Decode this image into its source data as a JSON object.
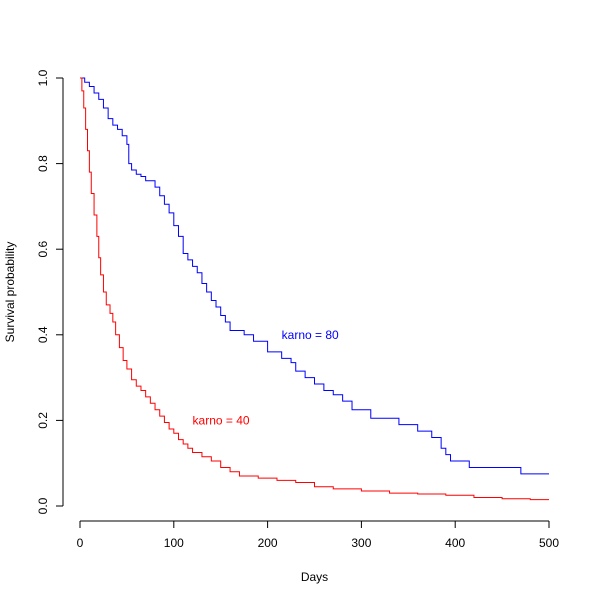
{
  "chart_data": {
    "type": "line",
    "title": "",
    "xlabel": "Days",
    "ylabel": "Survival probability",
    "xlim": [
      0,
      500
    ],
    "ylim": [
      0,
      1
    ],
    "xticks": [
      0,
      100,
      200,
      300,
      400,
      500
    ],
    "yticks": [
      0.0,
      0.2,
      0.4,
      0.6,
      0.8,
      1.0
    ],
    "x_tick_labels": [
      "0",
      "100",
      "200",
      "300",
      "400",
      "500"
    ],
    "y_tick_labels": [
      "0.0",
      "0.2",
      "0.4",
      "0.6",
      "0.8",
      "1.0"
    ],
    "grid": false,
    "step": true,
    "series": [
      {
        "name": "karno = 80",
        "color": "#0000ff",
        "label": {
          "text": "karno = 80",
          "x": 215,
          "y": 0.4
        },
        "points": [
          [
            0,
            1.0
          ],
          [
            5,
            0.99
          ],
          [
            10,
            0.98
          ],
          [
            15,
            0.965
          ],
          [
            20,
            0.95
          ],
          [
            25,
            0.93
          ],
          [
            30,
            0.905
          ],
          [
            35,
            0.89
          ],
          [
            40,
            0.88
          ],
          [
            45,
            0.865
          ],
          [
            50,
            0.845
          ],
          [
            52,
            0.8
          ],
          [
            55,
            0.785
          ],
          [
            60,
            0.775
          ],
          [
            65,
            0.77
          ],
          [
            70,
            0.76
          ],
          [
            80,
            0.745
          ],
          [
            85,
            0.725
          ],
          [
            90,
            0.705
          ],
          [
            95,
            0.685
          ],
          [
            100,
            0.655
          ],
          [
            105,
            0.63
          ],
          [
            110,
            0.59
          ],
          [
            115,
            0.575
          ],
          [
            120,
            0.56
          ],
          [
            125,
            0.545
          ],
          [
            130,
            0.52
          ],
          [
            135,
            0.5
          ],
          [
            140,
            0.48
          ],
          [
            145,
            0.465
          ],
          [
            150,
            0.445
          ],
          [
            155,
            0.43
          ],
          [
            160,
            0.41
          ],
          [
            175,
            0.4
          ],
          [
            185,
            0.385
          ],
          [
            200,
            0.36
          ],
          [
            215,
            0.345
          ],
          [
            225,
            0.335
          ],
          [
            230,
            0.315
          ],
          [
            240,
            0.3
          ],
          [
            250,
            0.285
          ],
          [
            260,
            0.27
          ],
          [
            270,
            0.26
          ],
          [
            280,
            0.245
          ],
          [
            290,
            0.225
          ],
          [
            310,
            0.205
          ],
          [
            340,
            0.19
          ],
          [
            360,
            0.175
          ],
          [
            375,
            0.16
          ],
          [
            385,
            0.135
          ],
          [
            390,
            0.12
          ],
          [
            395,
            0.105
          ],
          [
            415,
            0.09
          ],
          [
            470,
            0.075
          ],
          [
            500,
            0.075
          ]
        ]
      },
      {
        "name": "karno = 40",
        "color": "#ff0000",
        "label": {
          "text": "karno = 40",
          "x": 120,
          "y": 0.2
        },
        "points": [
          [
            0,
            1.0
          ],
          [
            2,
            0.97
          ],
          [
            4,
            0.93
          ],
          [
            6,
            0.88
          ],
          [
            8,
            0.83
          ],
          [
            10,
            0.78
          ],
          [
            12,
            0.73
          ],
          [
            15,
            0.68
          ],
          [
            18,
            0.63
          ],
          [
            20,
            0.58
          ],
          [
            22,
            0.54
          ],
          [
            25,
            0.5
          ],
          [
            28,
            0.47
          ],
          [
            32,
            0.45
          ],
          [
            35,
            0.43
          ],
          [
            38,
            0.4
          ],
          [
            42,
            0.37
          ],
          [
            46,
            0.34
          ],
          [
            50,
            0.32
          ],
          [
            55,
            0.295
          ],
          [
            60,
            0.28
          ],
          [
            65,
            0.27
          ],
          [
            70,
            0.255
          ],
          [
            75,
            0.24
          ],
          [
            80,
            0.225
          ],
          [
            85,
            0.21
          ],
          [
            90,
            0.195
          ],
          [
            95,
            0.18
          ],
          [
            100,
            0.17
          ],
          [
            105,
            0.155
          ],
          [
            110,
            0.145
          ],
          [
            115,
            0.135
          ],
          [
            120,
            0.125
          ],
          [
            130,
            0.115
          ],
          [
            140,
            0.105
          ],
          [
            150,
            0.09
          ],
          [
            160,
            0.08
          ],
          [
            170,
            0.07
          ],
          [
            190,
            0.065
          ],
          [
            210,
            0.06
          ],
          [
            230,
            0.055
          ],
          [
            250,
            0.045
          ],
          [
            270,
            0.04
          ],
          [
            300,
            0.035
          ],
          [
            330,
            0.03
          ],
          [
            360,
            0.028
          ],
          [
            390,
            0.025
          ],
          [
            420,
            0.02
          ],
          [
            450,
            0.017
          ],
          [
            480,
            0.015
          ],
          [
            500,
            0.015
          ]
        ]
      }
    ]
  }
}
